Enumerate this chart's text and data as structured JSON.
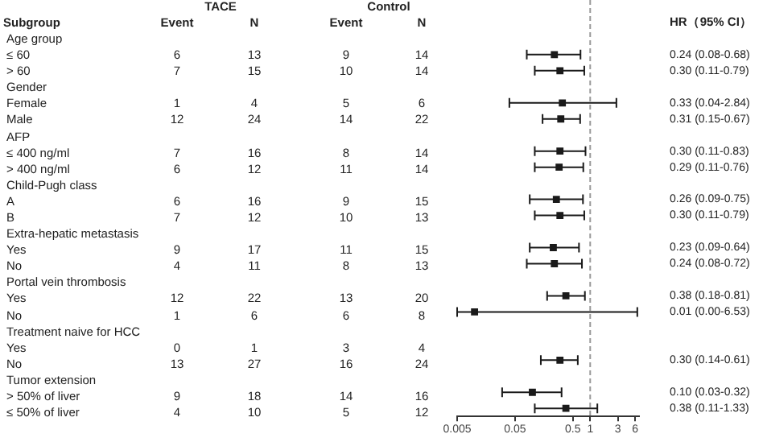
{
  "chart_data": [
    {
      "type": "heatmap",
      "data_labels": true,
      "ylabel": "Subgroup",
      "annotations": [
        "TACE",
        "Control"
      ],
      "categories": [
        "Event",
        "N",
        "Event",
        "N"
      ],
      "y_categories": [
        "Age group",
        "≤ 60",
        "> 60",
        "Gender",
        "Female",
        "Male",
        "AFP",
        "≤ 400 ng/ml",
        "> 400 ng/ml",
        "Child-Pugh class",
        "A",
        "B",
        "Extra-hepatic metastasis",
        "Yes",
        "No",
        "Portal vein thrombosis",
        "Yes",
        "No",
        "Treatment naive for HCC",
        "Yes",
        "No",
        "Tumor extension",
        "> 50% of liver",
        "≤ 50% of liver"
      ],
      "cells": [
        [
          null,
          null,
          null,
          null
        ],
        [
          6,
          13,
          9,
          14
        ],
        [
          7,
          15,
          10,
          14
        ],
        [
          null,
          null,
          null,
          null
        ],
        [
          1,
          4,
          5,
          6
        ],
        [
          12,
          24,
          14,
          22
        ],
        [
          null,
          null,
          null,
          null
        ],
        [
          7,
          16,
          8,
          14
        ],
        [
          6,
          12,
          11,
          14
        ],
        [
          null,
          null,
          null,
          null
        ],
        [
          6,
          16,
          9,
          15
        ],
        [
          7,
          12,
          10,
          13
        ],
        [
          null,
          null,
          null,
          null
        ],
        [
          9,
          17,
          11,
          15
        ],
        [
          4,
          11,
          8,
          13
        ],
        [
          null,
          null,
          null,
          null
        ],
        [
          12,
          22,
          13,
          20
        ],
        [
          1,
          6,
          6,
          8
        ],
        [
          null,
          null,
          null,
          null
        ],
        [
          0,
          1,
          3,
          4
        ],
        [
          13,
          27,
          16,
          24
        ],
        [
          null,
          null,
          null,
          null
        ],
        [
          9,
          18,
          14,
          16
        ],
        [
          4,
          10,
          5,
          12
        ]
      ]
    },
    {
      "type": "scatter",
      "orientation": "horizontal",
      "marker": "square",
      "color": "#1a1a1a",
      "log": "x",
      "categories": [
        null,
        null,
        null,
        null,
        null,
        null,
        null,
        null,
        null,
        null,
        null,
        null,
        null,
        null,
        null,
        null,
        null,
        null,
        null,
        null,
        null,
        null,
        null,
        null
      ],
      "values": [
        null,
        0.24,
        0.3,
        null,
        0.33,
        0.31,
        null,
        0.3,
        0.29,
        null,
        0.26,
        0.3,
        null,
        0.23,
        0.24,
        null,
        0.38,
        0.01,
        null,
        null,
        0.3,
        null,
        0.1,
        0.38
      ],
      "errors": [
        null,
        [
          0.08,
          0.68
        ],
        [
          0.11,
          0.79
        ],
        null,
        [
          0.04,
          2.84
        ],
        [
          0.15,
          0.67
        ],
        null,
        [
          0.11,
          0.83
        ],
        [
          0.11,
          0.76
        ],
        null,
        [
          0.09,
          0.75
        ],
        [
          0.11,
          0.79
        ],
        null,
        [
          0.09,
          0.64
        ],
        [
          0.08,
          0.72
        ],
        null,
        [
          0.18,
          0.81
        ],
        [
          0.005,
          6.53
        ],
        null,
        null,
        [
          0.14,
          0.61
        ],
        null,
        [
          0.03,
          0.32
        ],
        [
          0.11,
          1.33
        ]
      ],
      "value_labels": [
        null,
        "0.24 (0.08-0.68)",
        "0.30 (0.11-0.79)",
        null,
        "0.33 (0.04-2.84)",
        "0.31 (0.15-0.67)",
        null,
        "0.30 (0.11-0.83)",
        "0.29 (0.11-0.76)",
        null,
        "0.26 (0.09-0.75)",
        "0.30 (0.11-0.79)",
        null,
        "0.23 (0.09-0.64)",
        "0.24 (0.08-0.72)",
        null,
        "0.38 (0.18-0.81)",
        "0.01 (0.00-6.53)",
        null,
        null,
        "0.30 (0.14-0.61)",
        null,
        "0.10 (0.03-0.32)",
        "0.38 (0.11-1.33)"
      ],
      "xlim": [
        0.005,
        7
      ],
      "xticks": [
        0.005,
        0.05,
        0.5,
        1,
        3,
        6
      ],
      "ref_lines": [
        {
          "axis": "x",
          "value": 1,
          "color": "#999999",
          "line_style": "dashed"
        }
      ],
      "annotations": [
        "HR（95% CI）"
      ]
    }
  ]
}
